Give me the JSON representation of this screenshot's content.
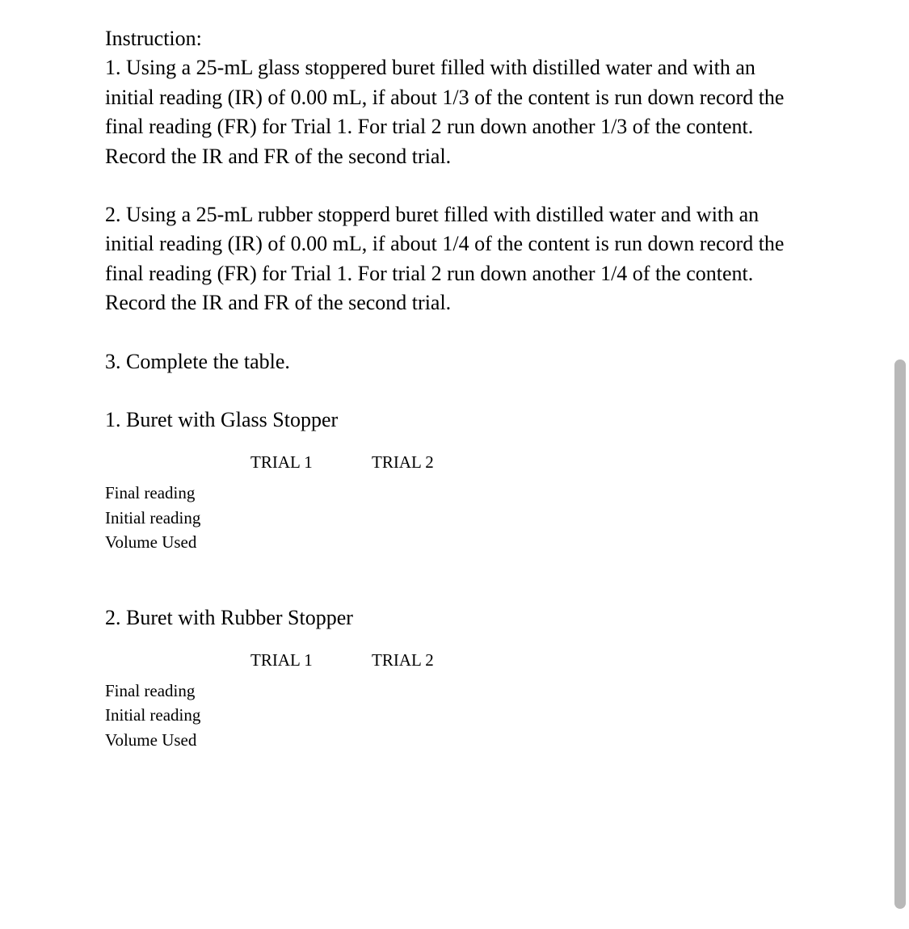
{
  "instruction_heading": "Instruction:",
  "paragraphs": {
    "p1": "1. Using a 25-mL glass stoppered buret filled with distilled water and with an initial reading (IR) of 0.00 mL, if about 1/3 of the content is run down record the final reading (FR) for Trial 1. For trial 2  run down another 1/3 of the content. Record the IR and FR of the second trial.",
    "p2": "2.  Using a 25-mL rubber stopperd buret  filled with distilled water and  with an  initial reading (IR) of 0.00 mL, if about 1/4 of the content  is run down record the final reading (FR) for Trial 1. For trial 2  run down another 1/4 of the content. Record the IR and FR of the second trial.",
    "p3": "3. Complete the table."
  },
  "section1": {
    "title": "1. Buret with Glass Stopper",
    "headers": {
      "col1": "TRIAL 1",
      "col2": "TRIAL 2"
    },
    "rows": {
      "r1": "Final reading",
      "r2": "Initial reading",
      "r3": "Volume Used"
    }
  },
  "section2": {
    "title": "2. Buret with Rubber Stopper",
    "headers": {
      "col1": "TRIAL 1",
      "col2": "TRIAL 2"
    },
    "rows": {
      "r1": "Final reading",
      "r2": "Initial reading",
      "r3": "Volume Used"
    }
  },
  "colors": {
    "background": "#ffffff",
    "text": "#000000",
    "scrollbar_thumb": "#b8b8b8"
  },
  "typography": {
    "body_fontsize": 26,
    "table_fontsize": 21,
    "font_family": "Times New Roman"
  }
}
